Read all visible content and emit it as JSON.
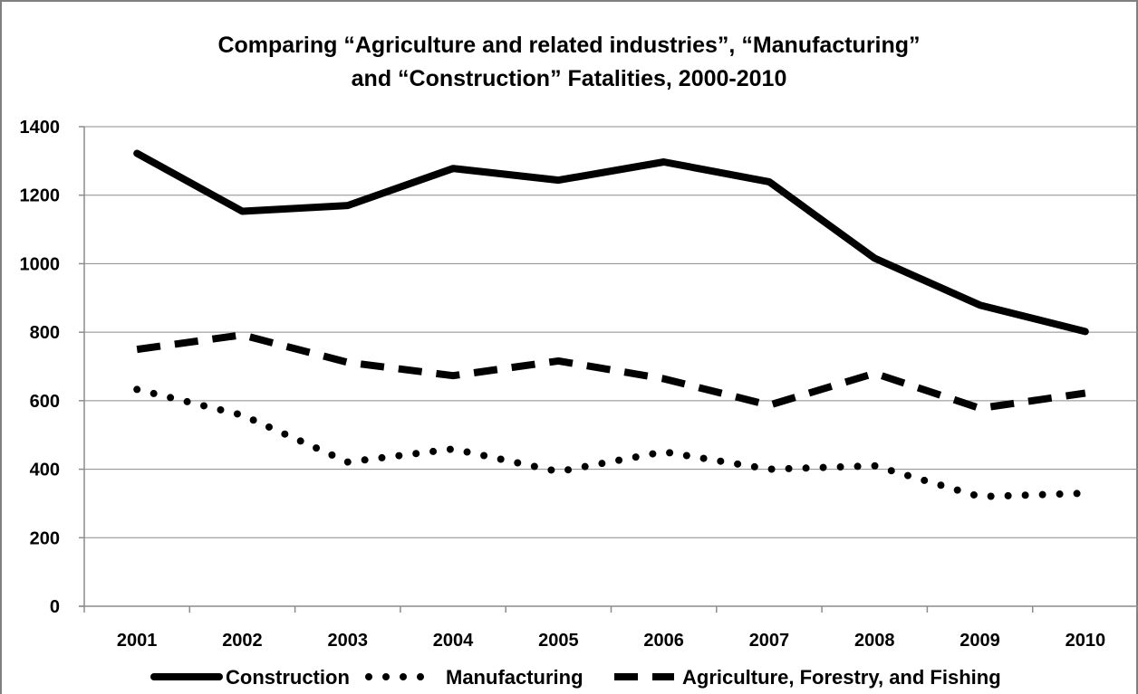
{
  "chart_data": {
    "type": "line",
    "title": [
      "Comparing “Agriculture and related industries”,  “Manufacturing”",
      "and “Construction” Fatalities, 2000-2010"
    ],
    "xlabel": "",
    "ylabel": "",
    "categories": [
      "2001",
      "2002",
      "2003",
      "2004",
      "2005",
      "2006",
      "2007",
      "2008",
      "2009",
      "2010"
    ],
    "ylim": [
      0,
      1400
    ],
    "yticks": [
      "0",
      "200",
      "400",
      "600",
      "800",
      "1000",
      "1200",
      "1400"
    ],
    "grid": true,
    "legend_position": "bottom",
    "series": [
      {
        "name": "Construction",
        "style": "solid",
        "color": "#000000",
        "values": [
          1322,
          1153,
          1170,
          1278,
          1244,
          1297,
          1239,
          1016,
          879,
          802
        ]
      },
      {
        "name": "Manufacturing",
        "style": "dotted",
        "color": "#000000",
        "values": [
          633,
          558,
          421,
          459,
          393,
          451,
          400,
          410,
          320,
          330
        ]
      },
      {
        "name": "Agriculture, Forestry, and Fishing",
        "style": "dashed",
        "color": "#000000",
        "values": [
          750,
          792,
          712,
          673,
          716,
          664,
          587,
          680,
          578,
          622
        ]
      }
    ]
  }
}
